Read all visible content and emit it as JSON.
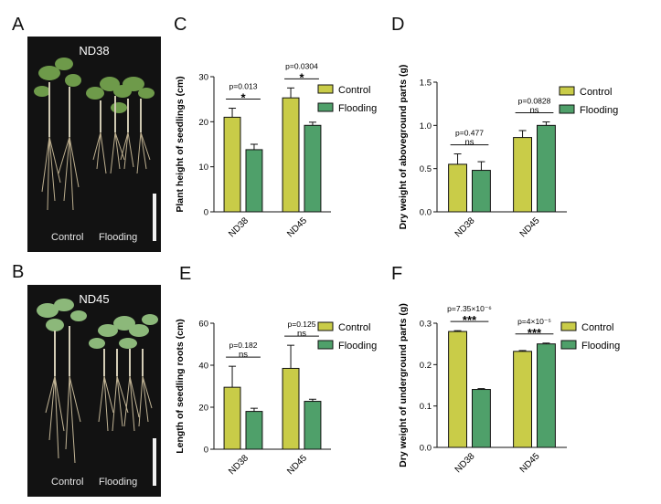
{
  "panels": {
    "A": {
      "letter": "A",
      "title": "ND38",
      "label_left": "Control",
      "label_right": "Flooding"
    },
    "B": {
      "letter": "B",
      "title": "ND45",
      "label_left": "Control",
      "label_right": "Flooding"
    },
    "C": {
      "letter": "C"
    },
    "D": {
      "letter": "D"
    },
    "E": {
      "letter": "E"
    },
    "F": {
      "letter": "F"
    }
  },
  "colors": {
    "control": "#c9cc48",
    "flooding": "#4fa06a"
  },
  "chart_data": [
    {
      "id": "C",
      "type": "bar",
      "ylabel": "Plant height of seedlings (cm)",
      "categories": [
        "ND38",
        "ND45"
      ],
      "legend": [
        "Control",
        "Flooding"
      ],
      "series": [
        {
          "name": "Control",
          "values": [
            21,
            25.3
          ],
          "errors": [
            2,
            2.2
          ]
        },
        {
          "name": "Flooding",
          "values": [
            13.8,
            19.2
          ],
          "errors": [
            1.2,
            0.7
          ]
        }
      ],
      "ylim": [
        0,
        30
      ],
      "yticks": [
        "0",
        "10",
        "20",
        "30"
      ],
      "yticks_values": [
        0,
        10,
        20,
        30
      ],
      "stats": [
        {
          "p": "p=0.013",
          "sig": "*"
        },
        {
          "p": "p=0.0304",
          "sig": "*"
        }
      ]
    },
    {
      "id": "D",
      "type": "bar",
      "ylabel": "Dry weight of aboveground parts (g)",
      "categories": [
        "ND38",
        "ND45"
      ],
      "legend": [
        "Control",
        "Flooding"
      ],
      "series": [
        {
          "name": "Control",
          "values": [
            0.55,
            0.86
          ],
          "errors": [
            0.12,
            0.08
          ]
        },
        {
          "name": "Flooding",
          "values": [
            0.48,
            1.0
          ],
          "errors": [
            0.1,
            0.04
          ]
        }
      ],
      "ylim": [
        0,
        1.5
      ],
      "yticks": [
        "0.0",
        "0.5",
        "1.0",
        "1.5"
      ],
      "yticks_values": [
        0,
        0.5,
        1.0,
        1.5
      ],
      "stats": [
        {
          "p": "p=0.477",
          "sig": "ns"
        },
        {
          "p": "p=0.0828",
          "sig": "ns"
        }
      ]
    },
    {
      "id": "E",
      "type": "bar",
      "ylabel": "Length of seedling roots (cm)",
      "categories": [
        "ND38",
        "ND45"
      ],
      "legend": [
        "Control",
        "Flooding"
      ],
      "series": [
        {
          "name": "Control",
          "values": [
            29.5,
            38.5
          ],
          "errors": [
            10,
            11
          ]
        },
        {
          "name": "Flooding",
          "values": [
            18,
            22.8
          ],
          "errors": [
            1.5,
            1
          ]
        }
      ],
      "ylim": [
        0,
        60
      ],
      "yticks": [
        "0",
        "20",
        "40",
        "60"
      ],
      "yticks_values": [
        0,
        20,
        40,
        60
      ],
      "stats": [
        {
          "p": "p=0.182",
          "sig": "ns"
        },
        {
          "p": "p=0.125",
          "sig": "ns"
        }
      ]
    },
    {
      "id": "F",
      "type": "bar",
      "ylabel": "Dry weight of underground parts (g)",
      "categories": [
        "ND38",
        "ND45"
      ],
      "legend": [
        "Control",
        "Flooding"
      ],
      "series": [
        {
          "name": "Control",
          "values": [
            0.28,
            0.232
          ],
          "errors": [
            0.002,
            0.002
          ]
        },
        {
          "name": "Flooding",
          "values": [
            0.14,
            0.25
          ],
          "errors": [
            0.002,
            0.002
          ]
        }
      ],
      "ylim": [
        0,
        0.3
      ],
      "yticks": [
        "0.0",
        "0.1",
        "0.2",
        "0.3"
      ],
      "yticks_values": [
        0,
        0.1,
        0.2,
        0.3
      ],
      "stats": [
        {
          "p": "p=7.35×10⁻⁶",
          "sig": "***"
        },
        {
          "p": "p=4×10⁻⁵",
          "sig": "***"
        }
      ]
    }
  ]
}
